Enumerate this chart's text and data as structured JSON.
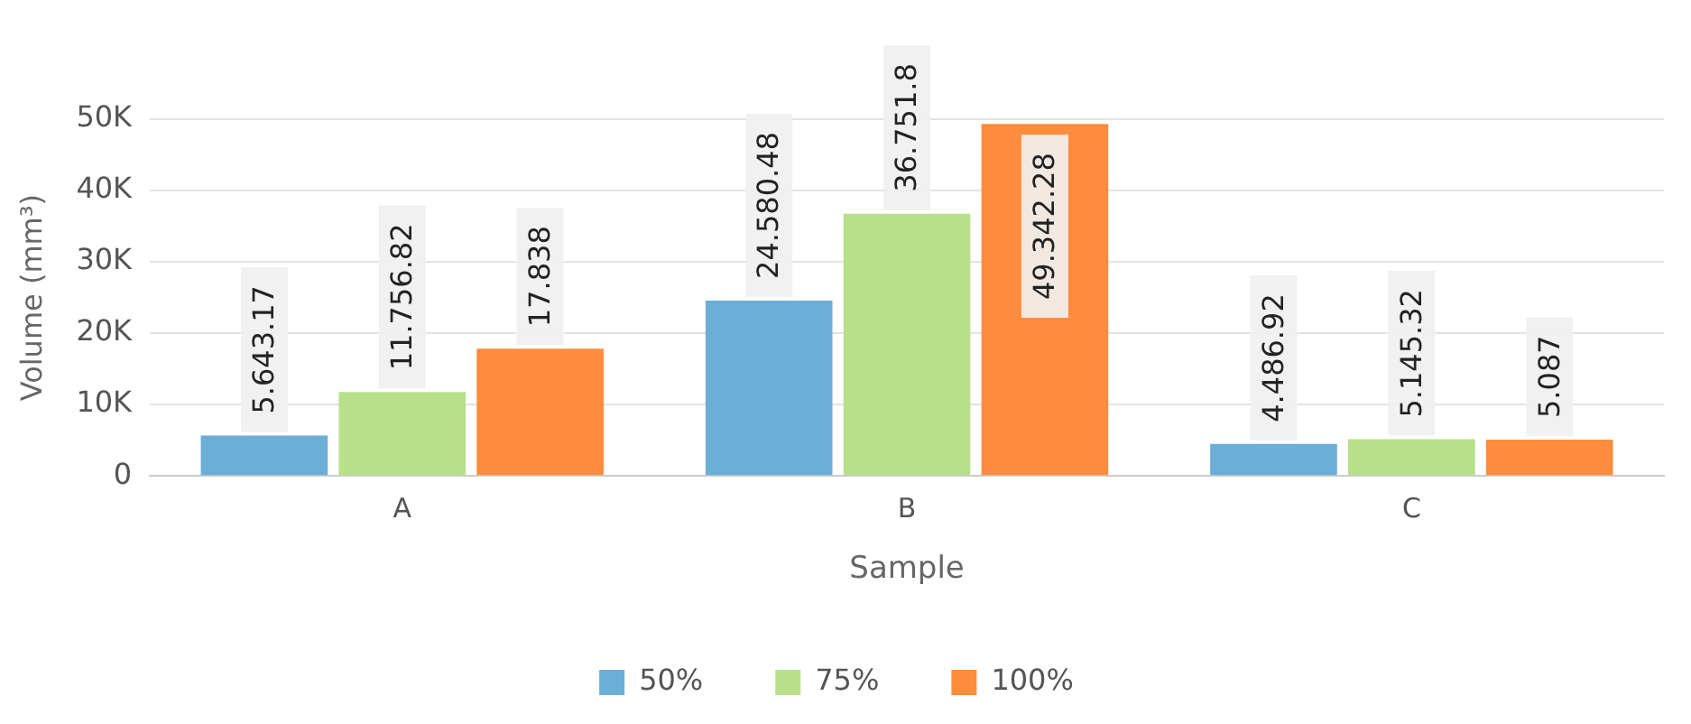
{
  "chart_data": {
    "type": "bar",
    "xlabel": "Sample",
    "ylabel": "Volume (mm³)",
    "categories": [
      "A",
      "B",
      "C"
    ],
    "series": [
      {
        "name": "50%",
        "color": "#6baed6",
        "values": [
          5643.17,
          24580.48,
          4486.92
        ],
        "value_labels": [
          "5.643.17",
          "24.580.48",
          "4.486.92"
        ]
      },
      {
        "name": "75%",
        "color": "#b8e08a",
        "values": [
          11756.82,
          36751.8,
          5145.32
        ],
        "value_labels": [
          "11.756.82",
          "36.751.8",
          "5.145.32"
        ]
      },
      {
        "name": "100%",
        "color": "#fd8d3c",
        "values": [
          17838,
          49342.28,
          5087
        ],
        "value_labels": [
          "17.838",
          "49.342.28",
          "5.087"
        ]
      }
    ],
    "ylim": [
      0,
      50000
    ],
    "yticks": [
      0,
      {
        "value": 10000,
        "label": "10K"
      },
      {
        "value": 20000,
        "label": "20K"
      },
      {
        "value": 30000,
        "label": "30K"
      },
      {
        "value": 40000,
        "label": "40K"
      },
      {
        "value": 50000,
        "label": "50K"
      }
    ],
    "grid": "y",
    "legend": "bottom"
  }
}
